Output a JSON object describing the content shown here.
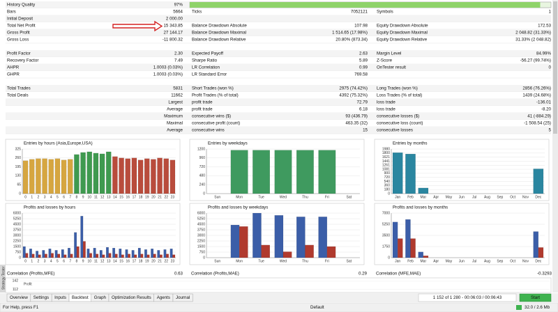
{
  "report": {
    "quality_bar": 97,
    "sections": [
      [
        {
          "left": {
            "label": "History Quality",
            "value": "97%"
          }
        },
        {
          "left": {
            "label": "Bars",
            "value": "5664"
          },
          "middle": {
            "label": "Ticks",
            "value": "7052121"
          },
          "right": {
            "label": "Symbols",
            "value": "1"
          }
        },
        {
          "left": {
            "label": "Initial Deposit",
            "value": "2 000.00"
          }
        },
        {
          "left": {
            "label": "Total Net Profit",
            "value": "15 343.85"
          },
          "middle": {
            "label": "Balance Drawdown Absolute",
            "value": "107.98"
          },
          "right": {
            "label": "Equity Drawdown Absolute",
            "value": "172.53"
          }
        },
        {
          "left": {
            "label": "Gross Profit",
            "value": "27 144.17"
          },
          "middle": {
            "label": "Balance Drawdown Maximal",
            "value": "1 514.65 (17.98%)"
          },
          "right": {
            "label": "Equity Drawdown Maximal",
            "value": "2 048.82 (31.33%)"
          }
        },
        {
          "left": {
            "label": "Gross Loss",
            "value": "-11 800.32"
          },
          "middle": {
            "label": "Balance Drawdown Relative",
            "value": "20.80% (873.34)"
          },
          "right": {
            "label": "Equity Drawdown Relative",
            "value": "31.33% (2 048.82)"
          }
        }
      ],
      [
        {
          "left": {
            "label": "Profit Factor",
            "value": "2.30"
          },
          "middle": {
            "label": "Expected Payoff",
            "value": "2.63"
          },
          "right": {
            "label": "Margin Level",
            "value": "84.99%"
          }
        },
        {
          "left": {
            "label": "Recovery Factor",
            "value": "7.49"
          },
          "middle": {
            "label": "Sharpe Ratio",
            "value": "5.89"
          },
          "right": {
            "label": "Z-Score",
            "value": "-56.27 (99.74%)"
          }
        },
        {
          "left": {
            "label": "AHPR",
            "value": "1.0003 (0.03%)"
          },
          "middle": {
            "label": "LR Correlation",
            "value": "0.99"
          },
          "right": {
            "label": "OnTester result",
            "value": "0"
          }
        },
        {
          "left": {
            "label": "GHPR",
            "value": "1.0003 (0.03%)"
          },
          "middle": {
            "label": "LR Standard Error",
            "value": "769.58"
          }
        }
      ],
      [
        {
          "left": {
            "label": "Total Trades",
            "value": "5831"
          },
          "middle": {
            "label": "Short Trades (won %)",
            "value": "2975 (74.42%)"
          },
          "right": {
            "label": "Long Trades (won %)",
            "value": "2856 (76.26%)"
          }
        },
        {
          "left": {
            "label": "Total Deals",
            "value": "11662"
          },
          "middle": {
            "label": "Profit Trades (% of total)",
            "value": "4392 (75.32%)"
          },
          "right": {
            "label": "Loss Trades (% of total)",
            "value": "1439 (24.68%)"
          }
        },
        {
          "left": {
            "value": "Largest"
          },
          "middle": {
            "label": "profit trade",
            "value": "72.79"
          },
          "right": {
            "label": "loss trade",
            "value": "-136.01"
          }
        },
        {
          "left": {
            "value": "Average"
          },
          "middle": {
            "label": "profit trade",
            "value": "6.18"
          },
          "right": {
            "label": "loss trade",
            "value": "-8.20"
          }
        },
        {
          "left": {
            "value": "Maximum"
          },
          "middle": {
            "label": "consecutive wins ($)",
            "value": "93 (436.79)"
          },
          "right": {
            "label": "consecutive losses ($)",
            "value": "41 (-884.29)"
          }
        },
        {
          "left": {
            "value": "Maximal"
          },
          "middle": {
            "label": "consecutive profit (count)",
            "value": "463.35 (32)"
          },
          "right": {
            "label": "consecutive loss (count)",
            "value": "-1 508.54 (25)"
          }
        },
        {
          "left": {
            "value": "Average"
          },
          "middle": {
            "label": "consecutive wins",
            "value": "15"
          },
          "right": {
            "label": "consecutive losses",
            "value": "5"
          }
        }
      ]
    ]
  },
  "charts": [
    {
      "type": "bar",
      "title": "Entries by hours (Asia,Europe,USA)",
      "categories": [
        "0",
        "1",
        "2",
        "3",
        "4",
        "5",
        "6",
        "7",
        "8",
        "9",
        "10",
        "11",
        "12",
        "13",
        "14",
        "15",
        "16",
        "17",
        "18",
        "19",
        "20",
        "21",
        "22",
        "23"
      ],
      "colors": [
        "#d6a640",
        "#d6a640",
        "#d6a640",
        "#d6a640",
        "#d6a640",
        "#d6a640",
        "#d6a640",
        "#d6a640",
        "#3f9a4f",
        "#3f9a4f",
        "#3f9a4f",
        "#3f9a4f",
        "#3f9a4f",
        "#3f9a4f",
        "#b94c3c",
        "#b94c3c",
        "#b94c3c",
        "#b94c3c",
        "#b94c3c",
        "#b94c3c",
        "#b94c3c",
        "#b94c3c",
        "#b94c3c",
        "#b94c3c"
      ],
      "series": [
        {
          "values": [
            240,
            250,
            255,
            255,
            250,
            255,
            245,
            250,
            285,
            300,
            305,
            295,
            290,
            305,
            270,
            260,
            255,
            260,
            245,
            255,
            250,
            260,
            255,
            245
          ]
        }
      ],
      "ylim": [
        0,
        325
      ],
      "yticks": [
        0,
        65,
        130,
        195,
        260,
        325
      ]
    },
    {
      "type": "bar",
      "title": "Entries by weekdays",
      "categories": [
        "Sun",
        "Mon",
        "Tue",
        "Wed",
        "Thu",
        "Fri",
        "Sat"
      ],
      "series": [
        {
          "color": "#3f9a5f",
          "values": [
            0,
            1170,
            1170,
            1170,
            1170,
            1170,
            0
          ]
        }
      ],
      "ylim": [
        0,
        1200
      ],
      "yticks": [
        0,
        240,
        480,
        720,
        960,
        1200
      ]
    },
    {
      "type": "bar",
      "title": "Entries by months",
      "categories": [
        "Jan",
        "Feb",
        "Mar",
        "Apr",
        "May",
        "Jun",
        "Jul",
        "Aug",
        "Sep",
        "Oct",
        "Nov",
        "Dec"
      ],
      "series": [
        {
          "color": "#2a86a0",
          "values": [
            1820,
            1760,
            250,
            0,
            0,
            0,
            0,
            0,
            0,
            0,
            0,
            1100
          ]
        }
      ],
      "ylim": [
        0,
        1980
      ],
      "yticks": [
        0,
        180,
        360,
        540,
        720,
        900,
        1081,
        1261,
        1441,
        1621,
        1800,
        1980
      ]
    },
    {
      "type": "bar",
      "title": "Profits and losses by hours",
      "categories": [
        "0",
        "1",
        "2",
        "3",
        "4",
        "5",
        "6",
        "7",
        "8",
        "9",
        "10",
        "11",
        "12",
        "13",
        "14",
        "15",
        "16",
        "17",
        "18",
        "19",
        "20",
        "21",
        "22",
        "23"
      ],
      "series": [
        {
          "color": "#3b5ea8",
          "values": [
            1500,
            1200,
            900,
            1000,
            1200,
            1000,
            1100,
            1300,
            3400,
            5600,
            1200,
            1300,
            1000,
            1400,
            1300,
            1200,
            1100,
            1000,
            1300,
            1100,
            1200,
            1000,
            1100,
            1200
          ]
        },
        {
          "color": "#b03a2e",
          "values": [
            600,
            500,
            400,
            500,
            600,
            500,
            400,
            500,
            1500,
            2200,
            600,
            500,
            400,
            600,
            500,
            400,
            500,
            400,
            500,
            400,
            500,
            400,
            500,
            400
          ]
        }
      ],
      "ylim": [
        0,
        6000
      ],
      "yticks": [
        0,
        750,
        1500,
        2250,
        3000,
        3750,
        4500,
        5250,
        6000
      ]
    },
    {
      "type": "bar",
      "title": "Profits and losses by weekdays",
      "categories": [
        "Sun",
        "Mon",
        "Tue",
        "Wed",
        "Thu",
        "Fri",
        "Sat"
      ],
      "series": [
        {
          "color": "#3b5ea8",
          "values": [
            0,
            4400,
            6000,
            5700,
            5500,
            5500,
            0
          ]
        },
        {
          "color": "#b03a2e",
          "values": [
            0,
            4200,
            1700,
            800,
            1700,
            1500,
            0
          ]
        }
      ],
      "ylim": [
        0,
        6000
      ],
      "yticks": [
        0,
        750,
        1500,
        2250,
        3000,
        3750,
        4500,
        5250,
        6000
      ]
    },
    {
      "type": "bar",
      "title": "Profits and losses by months",
      "categories": [
        "Jan",
        "Feb",
        "Mar",
        "Apr",
        "May",
        "Jun",
        "Jul",
        "Aug",
        "Sep",
        "Oct",
        "Nov",
        "Dec"
      ],
      "series": [
        {
          "color": "#3b5ea8",
          "values": [
            5600,
            6000,
            900,
            0,
            0,
            0,
            0,
            0,
            0,
            0,
            0,
            4100
          ]
        },
        {
          "color": "#b03a2e",
          "values": [
            3000,
            3000,
            300,
            0,
            0,
            0,
            0,
            0,
            0,
            0,
            0,
            1600
          ]
        }
      ],
      "ylim": [
        0,
        7000
      ],
      "yticks": [
        0,
        1750,
        3500,
        5250,
        7000
      ]
    }
  ],
  "correlations": [
    {
      "label": "Correlation (Profits,MFE)",
      "value": "0.63"
    },
    {
      "label": "Correlation (Profits,MAE)",
      "value": "0.29"
    },
    {
      "label": "Correlation (MFE,MAE)",
      "value": "-0.3293"
    }
  ],
  "mini_chart": {
    "title": "Profit",
    "ylim": [
      104,
      150
    ],
    "yticks": [
      112,
      142
    ]
  },
  "side_label": "Strategy Tester",
  "tabs": [
    "Overview",
    "Settings",
    "Inputs",
    "Backtest",
    "Graph",
    "Optimization Results",
    "Agents",
    "Journal"
  ],
  "active_tab": 3,
  "progress": "1 152 of 1 280 - 00:06:03 / 00:06:43",
  "start_button": "Start",
  "status": {
    "help": "For Help, press F1",
    "profile": "Default",
    "memory": "32.0 / 2.6 Mb"
  }
}
